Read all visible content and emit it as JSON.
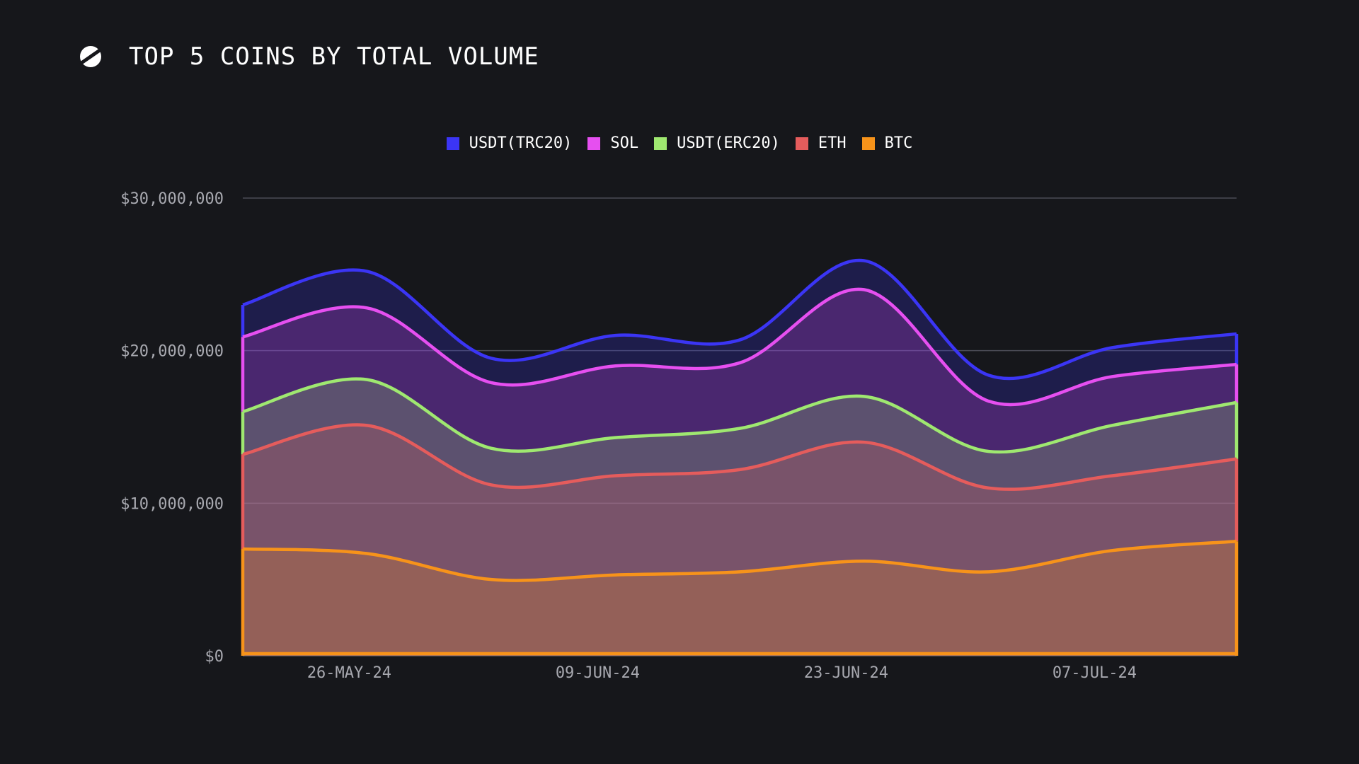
{
  "header": {
    "title": "TOP 5 COINS BY TOTAL VOLUME",
    "logo_icon": "slash-circle-logo-icon"
  },
  "chart_data": {
    "type": "area",
    "stacked": true,
    "smooth": true,
    "title": "TOP 5 COINS BY TOTAL VOLUME",
    "xlabel": "",
    "ylabel": "",
    "ylim": [
      0,
      30000000
    ],
    "y_ticks": [
      0,
      10000000,
      20000000,
      30000000
    ],
    "y_tick_labels": [
      "$0",
      "$10,000,000",
      "$20,000,000",
      "$30,000,000"
    ],
    "x_tick_labels": [
      "26-MAY-24",
      "09-JUN-24",
      "23-JUN-24",
      "07-JUL-24"
    ],
    "x_tick_dates": [
      "2024-05-26",
      "2024-06-09",
      "2024-06-23",
      "2024-07-07"
    ],
    "grid": true,
    "legend_position": "top-center",
    "x": [
      "2024-05-20",
      "2024-05-27",
      "2024-06-03",
      "2024-06-10",
      "2024-06-17",
      "2024-06-24",
      "2024-07-01",
      "2024-07-08",
      "2024-07-15"
    ],
    "series": [
      {
        "name": "BTC",
        "color": "#f7931a",
        "values": [
          7000000,
          6700000,
          5000000,
          5300000,
          5500000,
          6200000,
          5500000,
          6900000,
          7500000
        ]
      },
      {
        "name": "ETH",
        "color": "#e55c5c",
        "values": [
          6200000,
          8400000,
          6200000,
          6500000,
          6700000,
          7800000,
          5500000,
          4900000,
          5400000
        ]
      },
      {
        "name": "USDT(ERC20)",
        "color": "#9fe870",
        "values": [
          2800000,
          3000000,
          2400000,
          2500000,
          2700000,
          3000000,
          2400000,
          3300000,
          3700000
        ]
      },
      {
        "name": "SOL",
        "color": "#e64ff0",
        "values": [
          4900000,
          4700000,
          4300000,
          4700000,
          4300000,
          7000000,
          3300000,
          3200000,
          2500000
        ]
      },
      {
        "name": "USDT(TRC20)",
        "color": "#3b35f5",
        "values": [
          2100000,
          2400000,
          1600000,
          2000000,
          1500000,
          1900000,
          1700000,
          1900000,
          2000000
        ]
      }
    ]
  },
  "legend": {
    "items": [
      {
        "label": "USDT(TRC20)",
        "color": "#3b35f5"
      },
      {
        "label": "SOL",
        "color": "#e64ff0"
      },
      {
        "label": "USDT(ERC20)",
        "color": "#9fe870"
      },
      {
        "label": "ETH",
        "color": "#e55c5c"
      },
      {
        "label": "BTC",
        "color": "#f7931a"
      }
    ]
  }
}
